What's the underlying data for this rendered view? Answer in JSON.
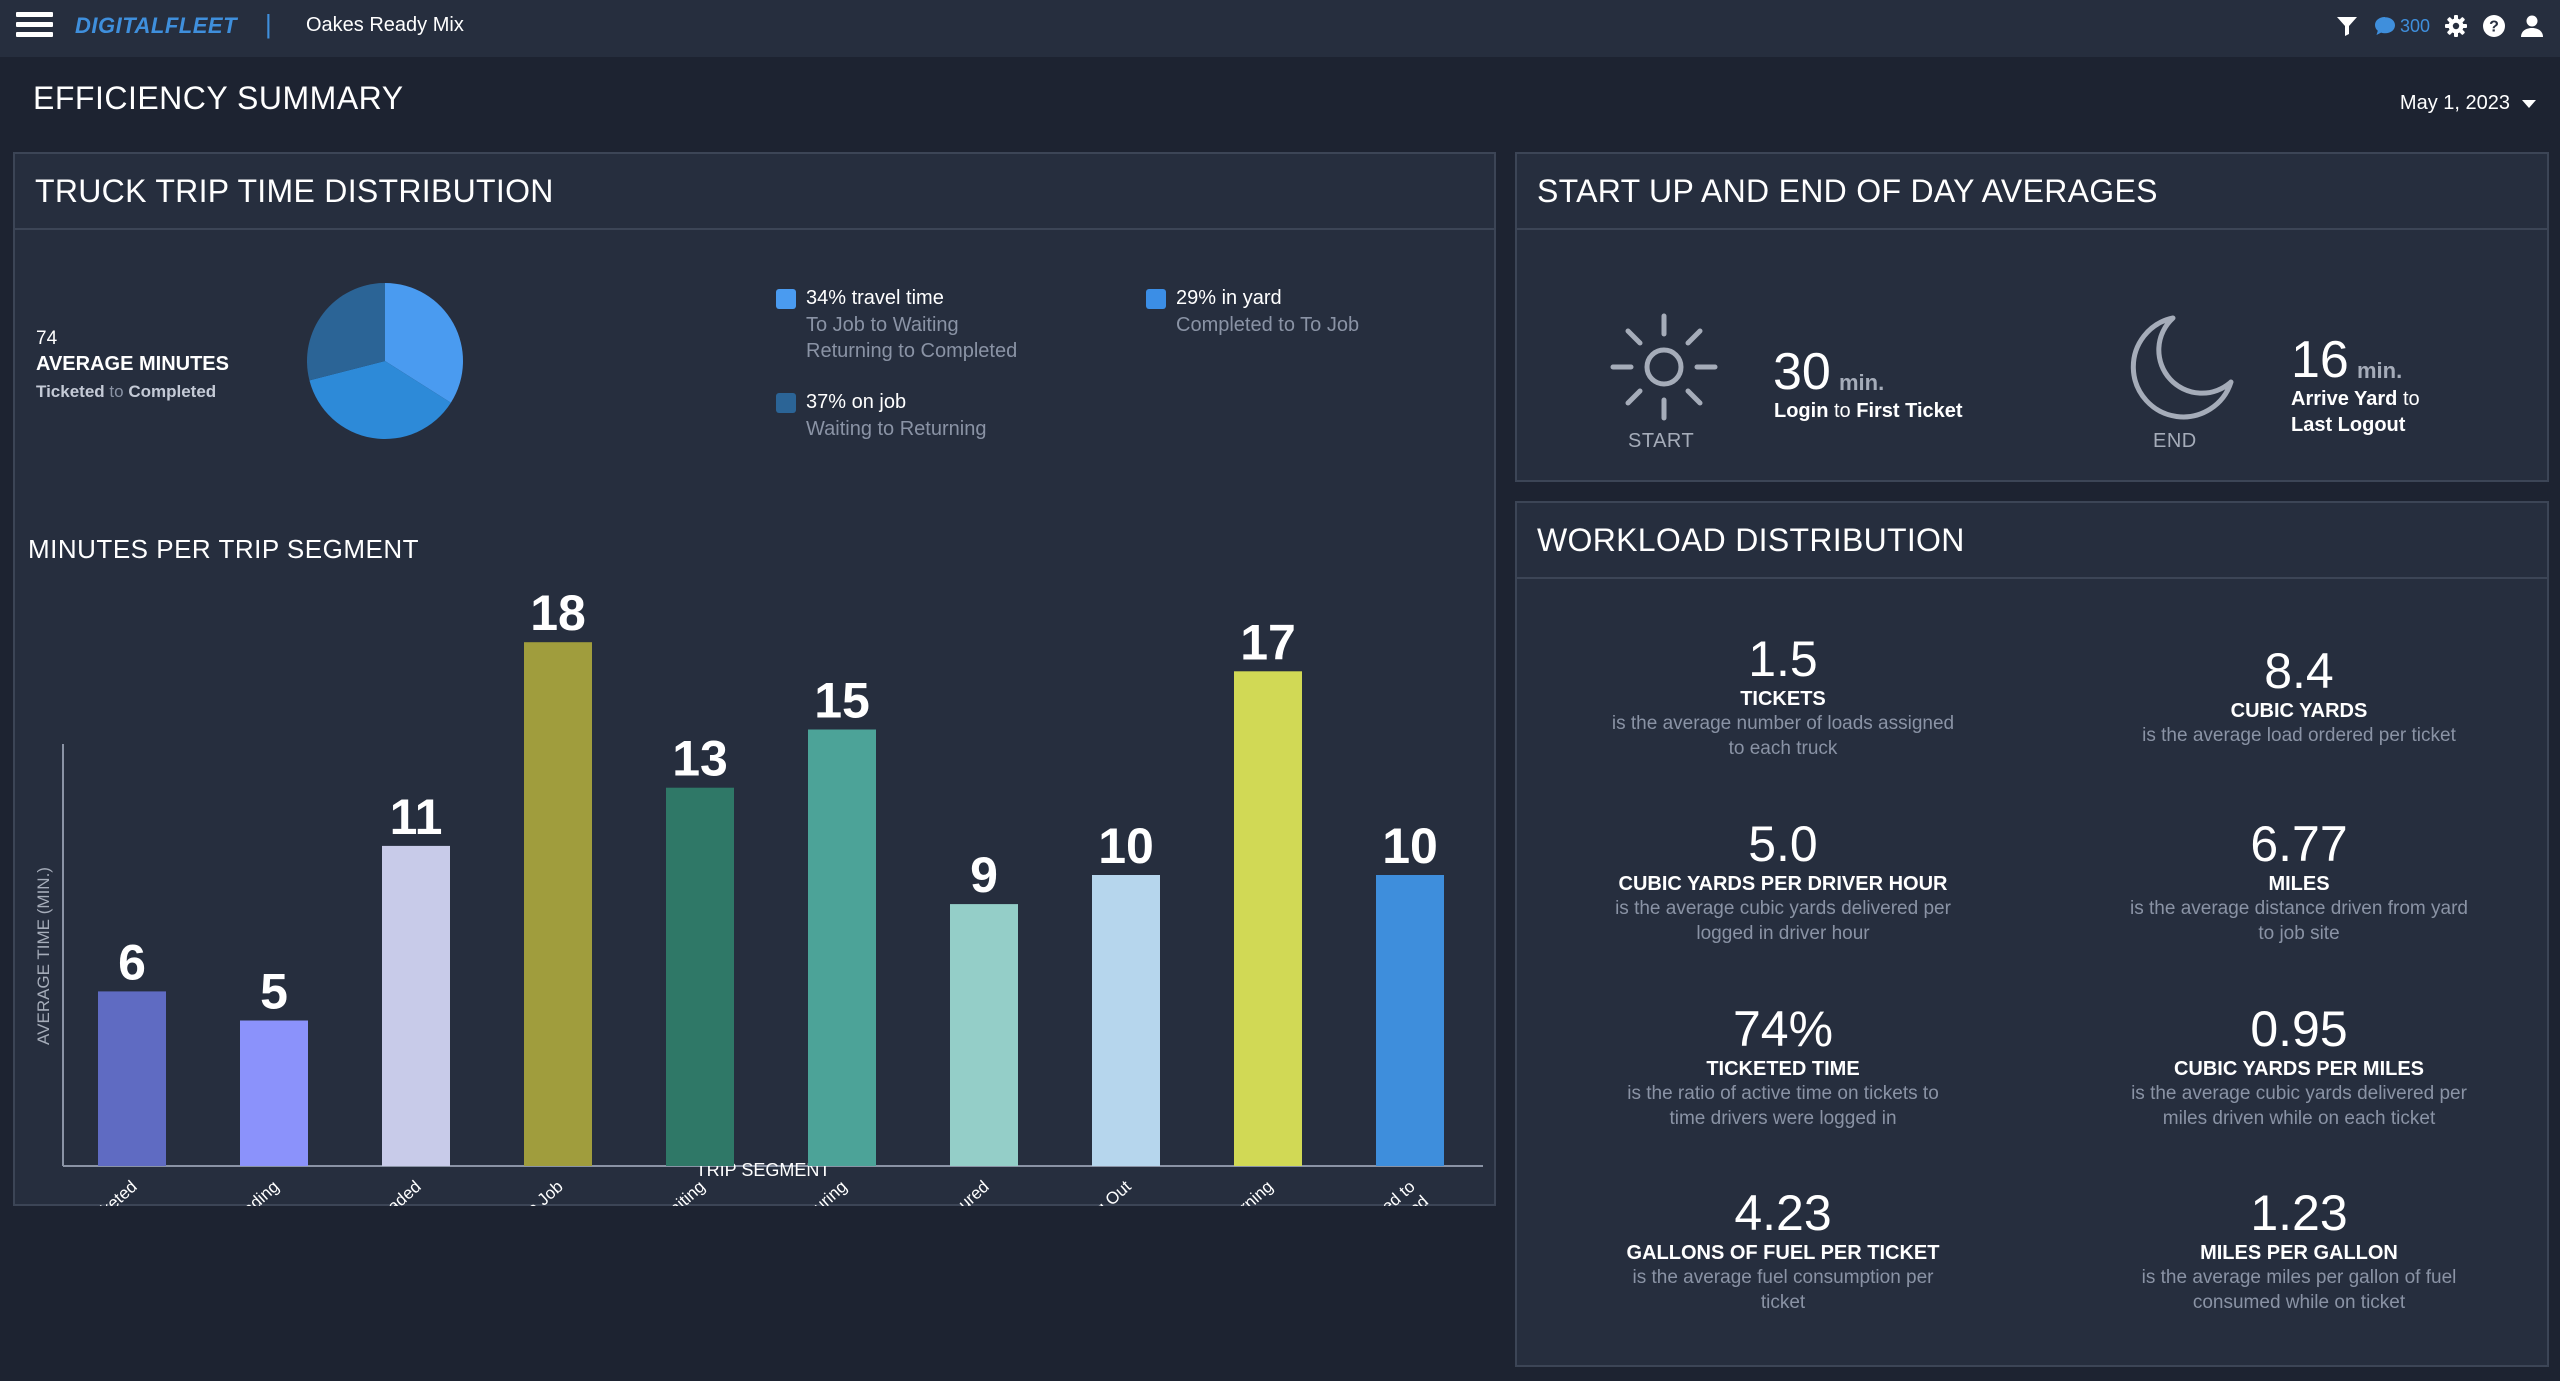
{
  "topbar": {
    "brand": "DIGITALFLEET",
    "separator": "|",
    "company": "Oakes Ready Mix",
    "message_count": "300"
  },
  "page": {
    "title": "EFFICIENCY SUMMARY",
    "date": "May 1, 2023"
  },
  "trip_distribution": {
    "title": "TRUCK TRIP TIME DISTRIBUTION",
    "average": {
      "value": "74",
      "label": "AVERAGE MINUTES",
      "from": "Ticketed",
      "to_word": "to",
      "to": "Completed"
    },
    "pie": [
      {
        "percent": 34,
        "color": "#4a9bf0"
      },
      {
        "percent": 37,
        "color": "#2d8ad8"
      },
      {
        "percent": 29,
        "color": "#2b6496"
      }
    ],
    "legend": [
      {
        "main": "34% travel time",
        "sub1": "To Job to Waiting",
        "sub2": "Returning to Completed",
        "color": "#4a9bf0"
      },
      {
        "main": "37% on job",
        "sub1": "Waiting to Returning",
        "sub2": "",
        "color": "#2b6496"
      },
      {
        "main": "29% in yard",
        "sub1": "Completed to To Job",
        "sub2": "",
        "color": "#3b8ee6"
      }
    ]
  },
  "chart_data": {
    "type": "bar",
    "title": "MINUTES PER TRIP SEGMENT",
    "xlabel": "TRIP SEGMENT",
    "ylabel": "AVERAGE TIME (MIN.)",
    "categories": [
      "Ticketed",
      "Loading",
      "Loaded",
      "To Job",
      "Waiting",
      "Pouring",
      "Poured",
      "Washing Out",
      "Returning",
      "Completed to Ticketed"
    ],
    "tick_lines": [
      [
        "Ticketed"
      ],
      [
        "Loading"
      ],
      [
        "Loaded"
      ],
      [
        "To Job"
      ],
      [
        "Waiting"
      ],
      [
        "Pouring"
      ],
      [
        "Poured"
      ],
      [
        "Washing Out"
      ],
      [
        "Returning"
      ],
      [
        "Completed to",
        "Ticketed"
      ]
    ],
    "values": [
      6,
      5,
      11,
      18,
      13,
      15,
      9,
      10,
      17,
      10
    ],
    "colors": [
      "#5f6bc2",
      "#8b92fb",
      "#c8cbe9",
      "#a09d3d",
      "#2f7867",
      "#4ca398",
      "#94cec8",
      "#b6d6ed",
      "#d1d955",
      "#3e8edc"
    ],
    "ylim": [
      0,
      20
    ],
    "grid": false,
    "legend": "none"
  },
  "startup": {
    "title": "START UP AND END OF DAY AVERAGES",
    "start": {
      "caption": "START",
      "value": "30",
      "unit": "min.",
      "desc_a": "Login",
      "desc_b": "to",
      "desc_c": "First Ticket"
    },
    "end": {
      "caption": "END",
      "value": "16",
      "unit": "min.",
      "desc_a": "Arrive Yard",
      "desc_b": "to",
      "desc_c": "Last Logout"
    }
  },
  "workload": {
    "title": "WORKLOAD DISTRIBUTION",
    "metrics": [
      {
        "value": "1.5",
        "label": "TICKETS",
        "desc1": "is the average number of loads assigned",
        "desc2": "to each truck"
      },
      {
        "value": "8.4",
        "label": "CUBIC YARDS",
        "desc1": "is the average load ordered per ticket",
        "desc2": ""
      },
      {
        "value": "5.0",
        "label": "CUBIC YARDS PER DRIVER HOUR",
        "desc1": "is the average cubic yards delivered per",
        "desc2": "logged in driver hour"
      },
      {
        "value": "6.77",
        "label": "MILES",
        "desc1": "is the average distance driven from yard",
        "desc2": "to job site"
      },
      {
        "value": "74%",
        "label": "TICKETED TIME",
        "desc1": "is the ratio of active time on tickets to",
        "desc2": "time drivers were logged in"
      },
      {
        "value": "0.95",
        "label": "CUBIC YARDS PER MILES",
        "desc1": "is the average cubic yards delivered per",
        "desc2": "miles driven while on each ticket"
      },
      {
        "value": "4.23",
        "label": "GALLONS OF FUEL PER TICKET",
        "desc1": "is the average fuel consumption per",
        "desc2": "ticket"
      },
      {
        "value": "1.23",
        "label": "MILES PER GALLON",
        "desc1": "is the average miles per gallon of fuel",
        "desc2": "consumed while on ticket"
      }
    ]
  },
  "colors": {
    "background": "#1d2331",
    "panel": "#262e3e",
    "accent": "#3f8fdc"
  },
  "icons": [
    "menu-icon",
    "filter-icon",
    "chat-bubble-icon",
    "gear-icon",
    "help-icon",
    "user-icon",
    "sun-icon",
    "moon-icon"
  ]
}
